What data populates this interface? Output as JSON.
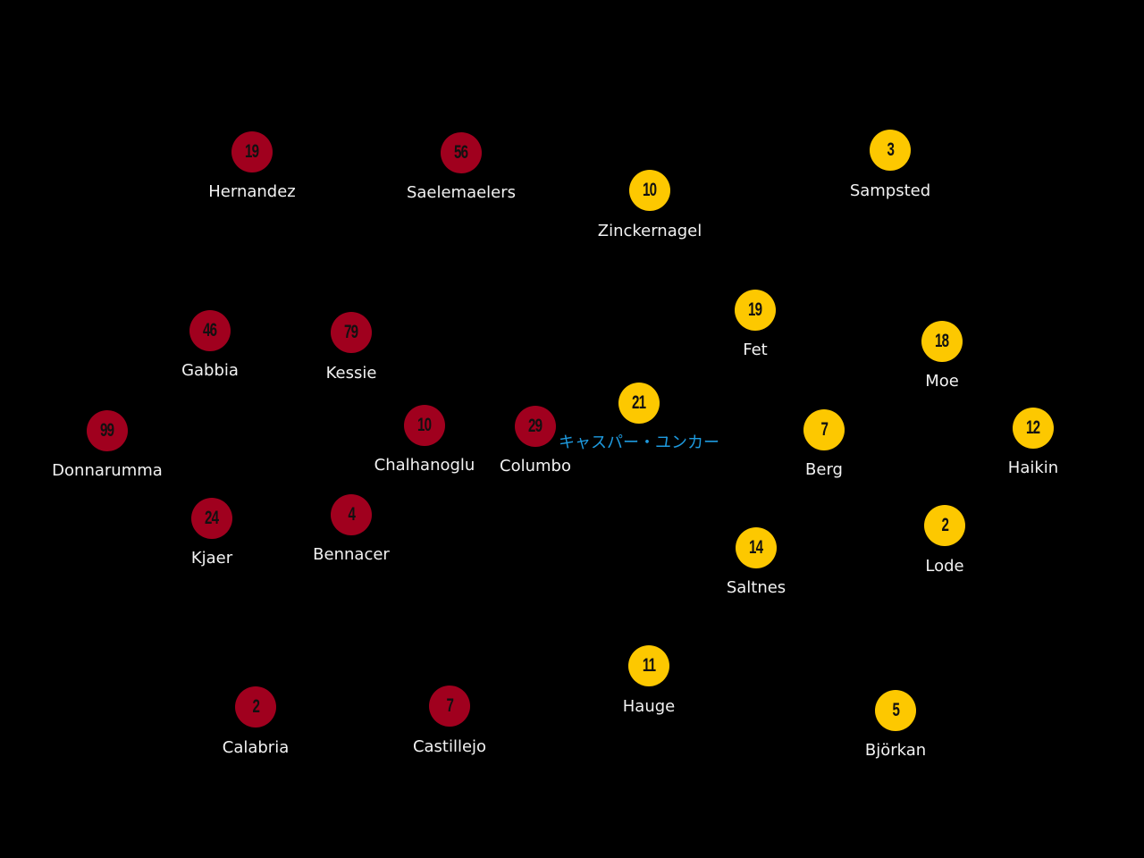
{
  "colors": {
    "home": "#a0001e",
    "away": "#fdc800",
    "background": "#000000",
    "label": "#f2f2f2",
    "highlight_label": "#1e9be0"
  },
  "home_team": {
    "players": [
      {
        "number": "19",
        "name": "Hernandez"
      },
      {
        "number": "56",
        "name": "Saelemaelers"
      },
      {
        "number": "46",
        "name": "Gabbia"
      },
      {
        "number": "79",
        "name": "Kessie"
      },
      {
        "number": "99",
        "name": "Donnarumma"
      },
      {
        "number": "10",
        "name": "Chalhanoglu"
      },
      {
        "number": "29",
        "name": "Columbo"
      },
      {
        "number": "24",
        "name": "Kjaer"
      },
      {
        "number": "4",
        "name": "Bennacer"
      },
      {
        "number": "2",
        "name": "Calabria"
      },
      {
        "number": "7",
        "name": "Castillejo"
      }
    ]
  },
  "away_team": {
    "players": [
      {
        "number": "10",
        "name": "Zinckernagel"
      },
      {
        "number": "3",
        "name": "Sampsted"
      },
      {
        "number": "19",
        "name": "Fet"
      },
      {
        "number": "18",
        "name": "Moe"
      },
      {
        "number": "21",
        "name": "キャスパー・ユンカー",
        "highlight": true
      },
      {
        "number": "7",
        "name": "Berg"
      },
      {
        "number": "12",
        "name": "Haikin"
      },
      {
        "number": "14",
        "name": "Saltnes"
      },
      {
        "number": "2",
        "name": "Lode"
      },
      {
        "number": "11",
        "name": "Hauge"
      },
      {
        "number": "5",
        "name": "Björkan"
      }
    ]
  }
}
